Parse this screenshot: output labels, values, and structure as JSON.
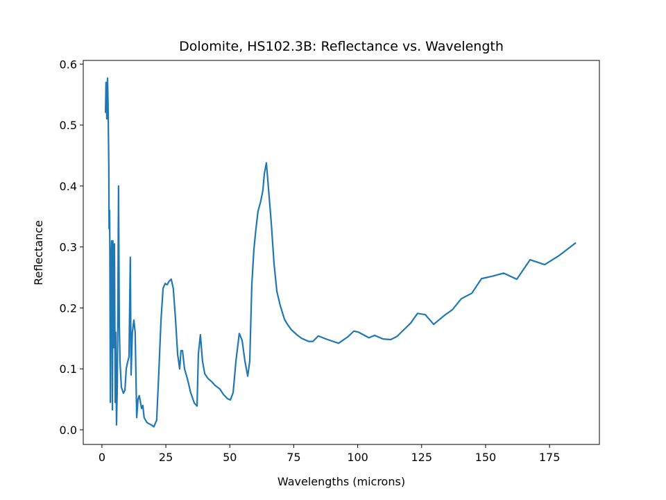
{
  "chart_data": {
    "type": "line",
    "title": "Dolomite, HS102.3B: Reflectance vs. Wavelength",
    "xlabel": "Wavelengths (microns)",
    "ylabel": "Reflectance",
    "color": "#1f77b4",
    "x": [
      1.4,
      1.6,
      1.9,
      2.2,
      2.4,
      2.7,
      2.8,
      3.0,
      3.1,
      3.3,
      3.5,
      3.8,
      4.1,
      4.3,
      4.6,
      4.9,
      5.2,
      5.4,
      5.7,
      6.0,
      6.2,
      6.5,
      6.8,
      7.1,
      7.6,
      8.4,
      9.0,
      9.5,
      10.0,
      10.6,
      11.1,
      11.4,
      11.9,
      12.5,
      13.0,
      13.6,
      14.1,
      14.6,
      15.5,
      16.0,
      16.5,
      17.6,
      19.3,
      20.3,
      21.4,
      22.2,
      23.1,
      23.9,
      24.7,
      25.5,
      26.3,
      27.1,
      27.9,
      28.8,
      29.6,
      30.4,
      30.9,
      31.5,
      32.3,
      33.4,
      34.7,
      36.1,
      37.2,
      37.7,
      38.5,
      39.3,
      40.2,
      41.5,
      42.9,
      44.2,
      46.1,
      47.5,
      49.1,
      50.2,
      51.3,
      52.4,
      53.7,
      54.8,
      55.9,
      57.0,
      57.8,
      58.6,
      59.4,
      60.2,
      61.0,
      62.1,
      62.9,
      63.5,
      64.3,
      65.1,
      66.2,
      67.3,
      68.4,
      69.7,
      71.4,
      72.7,
      74.1,
      76.2,
      78.1,
      80.8,
      82.5,
      84.6,
      87.6,
      92.5,
      96.3,
      98.5,
      100.4,
      104.4,
      106.6,
      109.9,
      112.9,
      115.3,
      117.5,
      120.7,
      123.4,
      126.4,
      129.7,
      133.7,
      137.0,
      140.5,
      144.6,
      148.4,
      152.7,
      157.1,
      162.2,
      167.4,
      173.1,
      178.8,
      185.3
    ],
    "values": [
      0.52,
      0.57,
      0.51,
      0.577,
      0.534,
      0.43,
      0.33,
      0.36,
      0.295,
      0.045,
      0.27,
      0.31,
      0.033,
      0.31,
      0.135,
      0.305,
      0.045,
      0.16,
      0.008,
      0.07,
      0.17,
      0.4,
      0.17,
      0.11,
      0.07,
      0.06,
      0.065,
      0.1,
      0.11,
      0.12,
      0.283,
      0.09,
      0.16,
      0.18,
      0.16,
      0.02,
      0.05,
      0.056,
      0.035,
      0.04,
      0.02,
      0.012,
      0.008,
      0.005,
      0.016,
      0.09,
      0.18,
      0.232,
      0.24,
      0.238,
      0.244,
      0.247,
      0.232,
      0.18,
      0.124,
      0.1,
      0.13,
      0.13,
      0.1,
      0.084,
      0.061,
      0.044,
      0.039,
      0.124,
      0.156,
      0.113,
      0.092,
      0.084,
      0.079,
      0.073,
      0.067,
      0.058,
      0.051,
      0.049,
      0.061,
      0.113,
      0.158,
      0.147,
      0.113,
      0.088,
      0.113,
      0.238,
      0.295,
      0.329,
      0.358,
      0.375,
      0.392,
      0.42,
      0.438,
      0.397,
      0.34,
      0.272,
      0.227,
      0.204,
      0.181,
      0.172,
      0.164,
      0.156,
      0.15,
      0.145,
      0.145,
      0.154,
      0.149,
      0.142,
      0.153,
      0.162,
      0.16,
      0.151,
      0.155,
      0.149,
      0.148,
      0.153,
      0.162,
      0.175,
      0.191,
      0.189,
      0.173,
      0.187,
      0.197,
      0.215,
      0.224,
      0.248,
      0.252,
      0.257,
      0.247,
      0.279,
      0.271,
      0.286,
      0.307
    ],
    "xlim": [
      -7.3,
      194.5
    ],
    "ylim": [
      -0.024,
      0.606
    ],
    "xticks": [
      0,
      25,
      50,
      75,
      100,
      125,
      150,
      175
    ],
    "yticks": [
      {
        "value": 0,
        "label": "0.0"
      },
      0.1,
      0.2,
      0.3,
      0.4,
      0.5,
      0.6
    ]
  }
}
